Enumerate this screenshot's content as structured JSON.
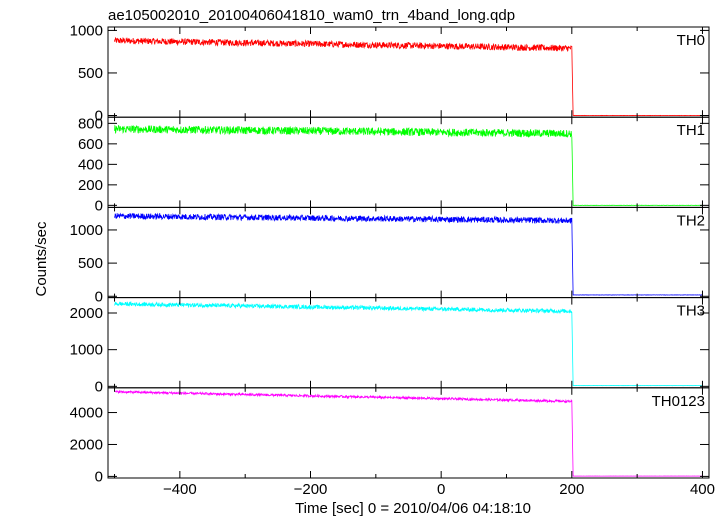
{
  "chart_data": {
    "type": "line",
    "title": "ae105002010_20100406041810_wam0_trn_4band_long.qdp",
    "xlabel": "Time [sec] 0 = 2010/04/06 04:18:10",
    "ylabel": "Counts/sec",
    "xlim": [
      -510,
      410
    ],
    "x_ticks": [
      -400,
      -200,
      0,
      200,
      400
    ],
    "grid": false,
    "panels": [
      {
        "name": "TH0",
        "color": "#ff0000",
        "ylim": [
          -20,
          1040
        ],
        "y_ticks": [
          0,
          500,
          1000
        ],
        "x": [
          -500,
          200,
          202,
          400
        ],
        "y": [
          880,
          790,
          0,
          0
        ],
        "noise": 38
      },
      {
        "name": "TH1",
        "color": "#00ff00",
        "ylim": [
          -20,
          860
        ],
        "y_ticks": [
          0,
          200,
          400,
          600,
          800
        ],
        "x": [
          -500,
          200,
          202,
          400
        ],
        "y": [
          745,
          700,
          0,
          0
        ],
        "noise": 38
      },
      {
        "name": "TH2",
        "color": "#0000ff",
        "ylim": [
          -20,
          1340
        ],
        "y_ticks": [
          0,
          500,
          1000
        ],
        "x": [
          -500,
          200,
          202,
          400
        ],
        "y": [
          1210,
          1140,
          20,
          20
        ],
        "noise": 45
      },
      {
        "name": "TH3",
        "color": "#00ffff",
        "ylim": [
          -40,
          2420
        ],
        "y_ticks": [
          0,
          1000,
          2000
        ],
        "x": [
          -500,
          200,
          202,
          400
        ],
        "y": [
          2250,
          2050,
          20,
          20
        ],
        "noise": 55
      },
      {
        "name": "TH0123",
        "color": "#ff00ff",
        "ylim": [
          -100,
          5550
        ],
        "y_ticks": [
          0,
          2000,
          4000
        ],
        "x": [
          -500,
          200,
          202,
          400
        ],
        "y": [
          5300,
          4700,
          20,
          20
        ],
        "noise": 70
      }
    ]
  }
}
